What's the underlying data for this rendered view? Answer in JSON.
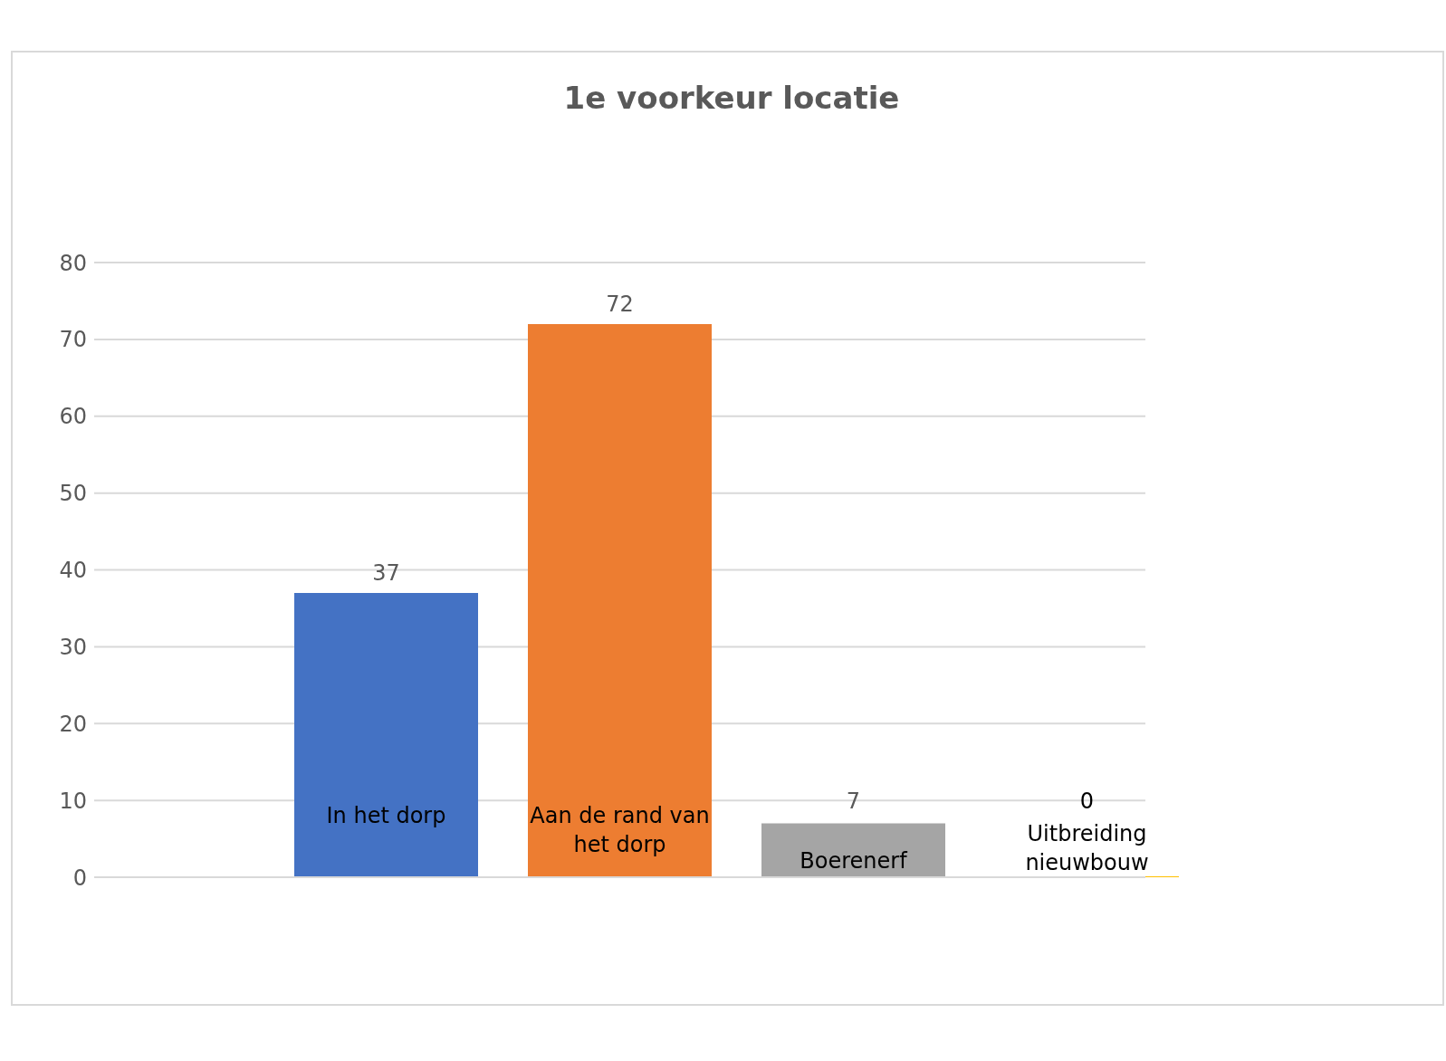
{
  "chart_data": {
    "type": "bar",
    "title": "1e voorkeur locatie",
    "categories": [
      null
    ],
    "series": [
      {
        "name": "In het dorp",
        "color": "#4472c4",
        "values": [
          37
        ]
      },
      {
        "name": "Aan de rand van het dorp",
        "color": "#ed7d31",
        "values": [
          72
        ]
      },
      {
        "name": "Boerenerf",
        "color": "#a5a5a5",
        "values": [
          7
        ]
      },
      {
        "name": "Uitbreiding nieuwbouw",
        "color": "#ffc000",
        "values": [
          0
        ]
      }
    ],
    "ylim": [
      0,
      80
    ],
    "yticks": [
      0,
      10,
      20,
      30,
      40,
      50,
      60,
      70,
      80
    ],
    "grid": "y",
    "legend": false,
    "data_labels": true
  }
}
